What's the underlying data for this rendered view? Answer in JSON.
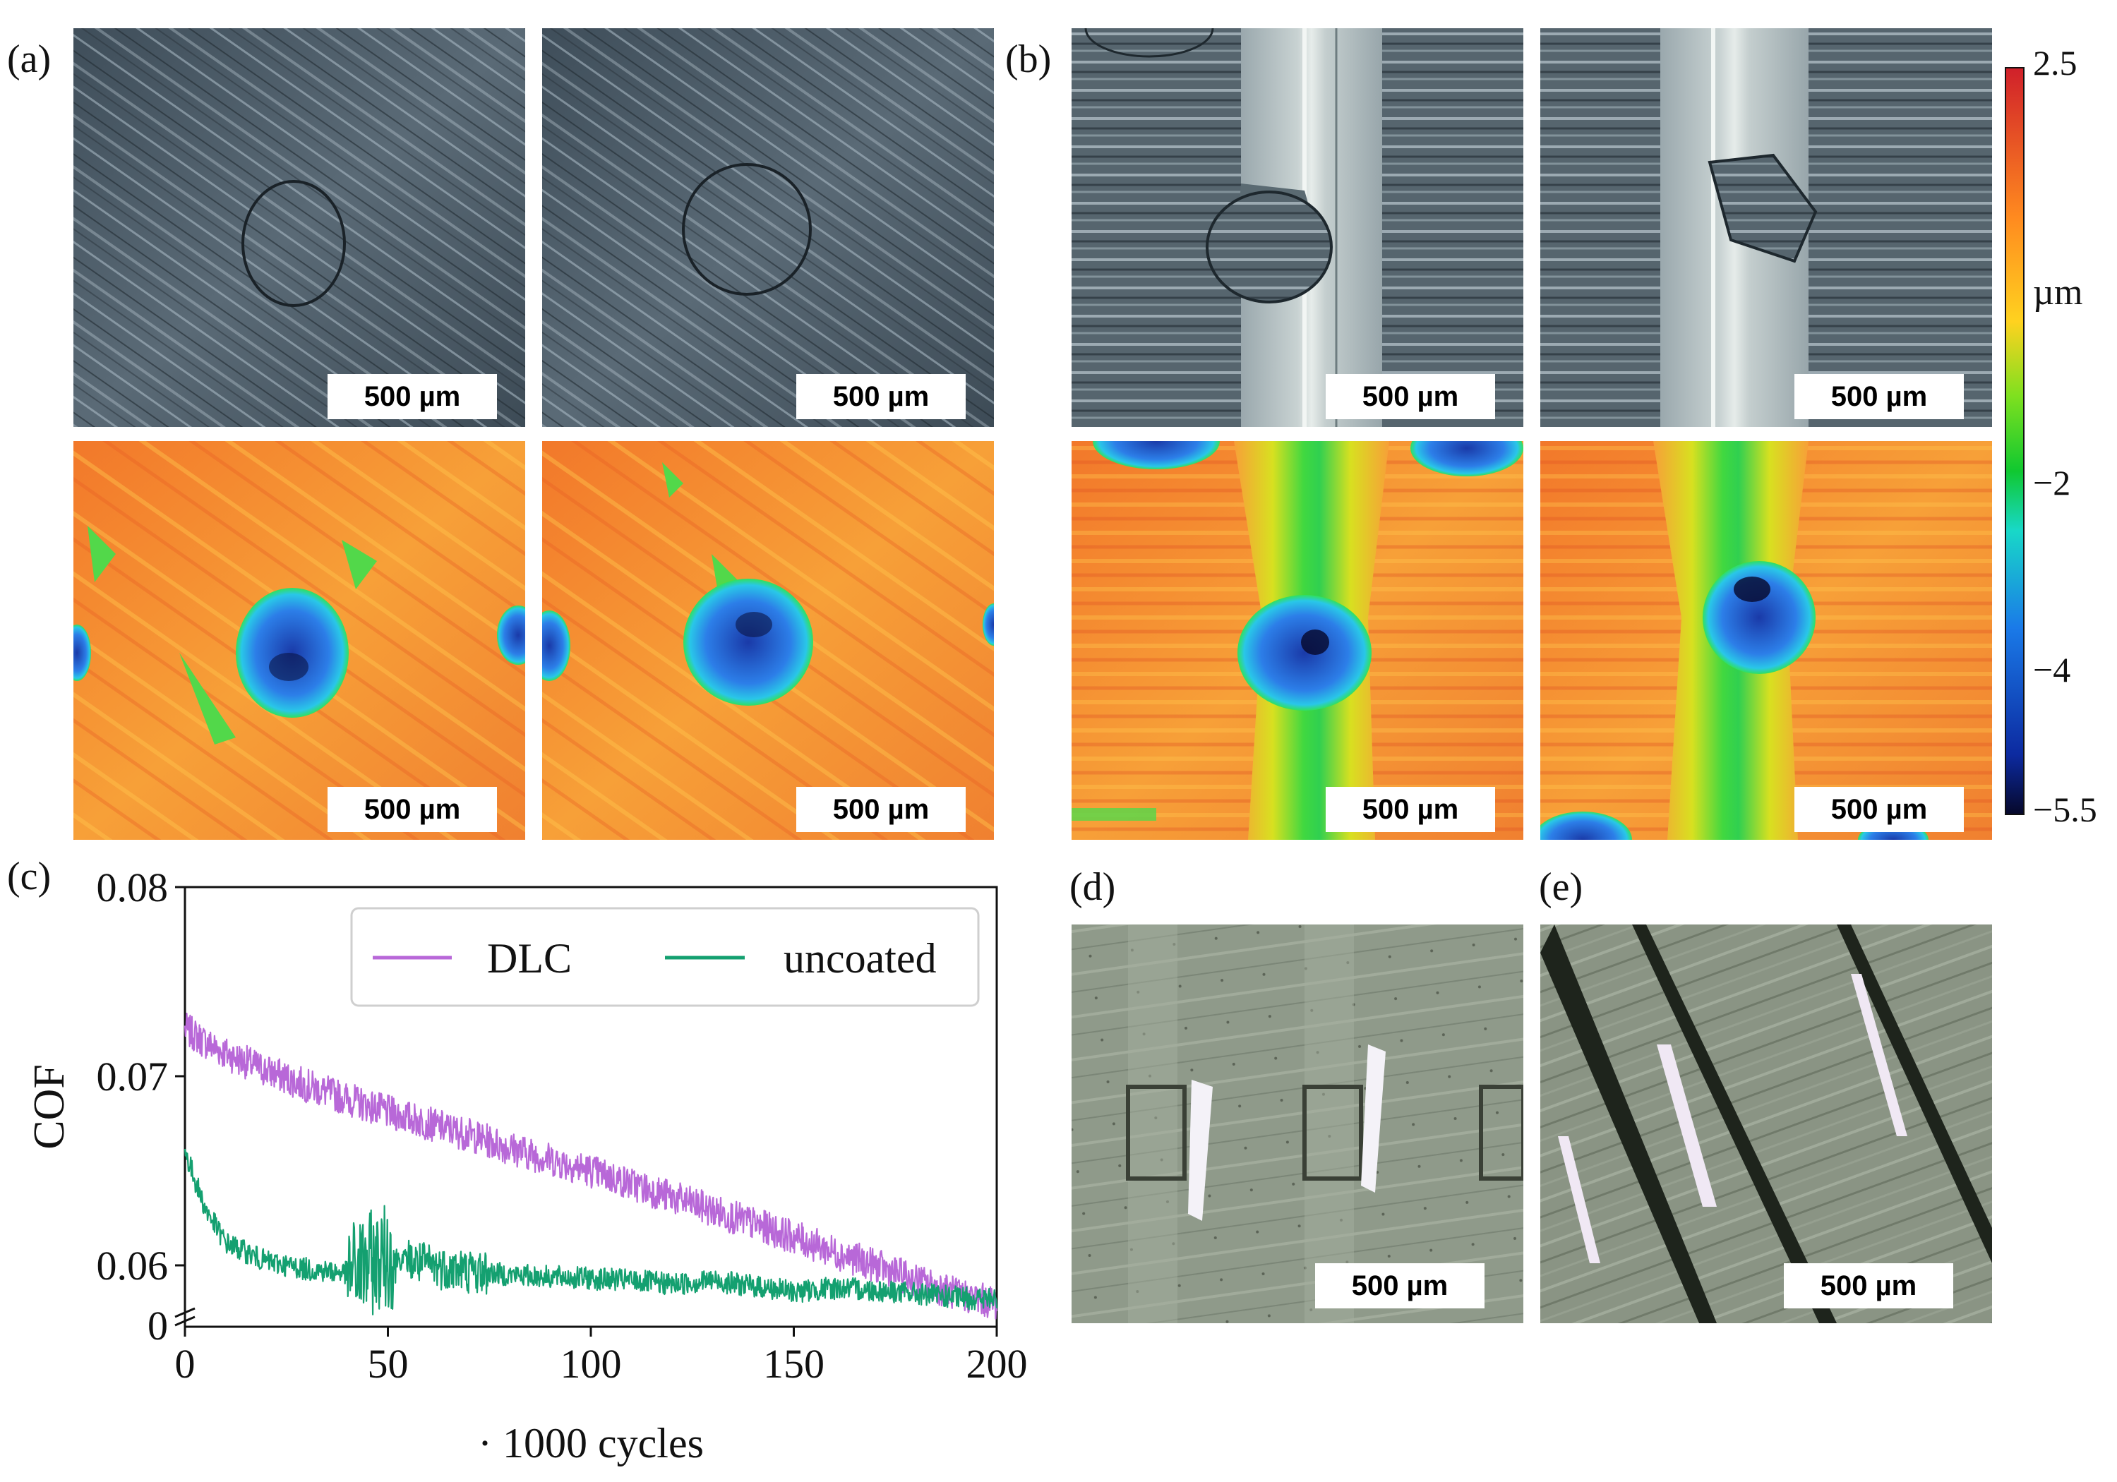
{
  "panel_labels": {
    "a": "(a)",
    "b": "(b)",
    "c": "(c)",
    "d": "(d)",
    "e": "(e)"
  },
  "scale_bar_text": "500 µm",
  "colorbar": {
    "unit": "µm",
    "ticks": [
      "2.5",
      "−2",
      "−4",
      "−5.5"
    ],
    "colors": [
      "#d0202a",
      "#ff8a1f",
      "#ffd21f",
      "#7ee01f",
      "#10c830",
      "#18d8c8",
      "#1a7ae8",
      "#0c2aa0",
      "#06082a"
    ]
  },
  "colors": {
    "optical_dark": "#4a5a66",
    "optical_light": "#a9b8c2",
    "height_surface": "#f48a2a",
    "height_pit": "#1f7ae8",
    "pale_optical": "#8c9686"
  },
  "chart_data": {
    "type": "line",
    "title": "",
    "xlabel": "· 1000 cycles",
    "ylabel": "COF",
    "xlim": [
      0,
      200
    ],
    "ylim": [
      0.055,
      0.08
    ],
    "broken_axis_origin_label": "0",
    "x_ticks": [
      "0",
      "50",
      "100",
      "150",
      "200"
    ],
    "y_ticks": [
      "0.06",
      "0.07",
      "0.08"
    ],
    "y_tick_values": [
      0.06,
      0.07,
      0.08
    ],
    "x_tick_values": [
      0,
      50,
      100,
      150,
      200
    ],
    "legend_position": "top-right",
    "x": [
      0,
      5,
      10,
      20,
      30,
      40,
      50,
      60,
      70,
      80,
      90,
      100,
      110,
      120,
      130,
      140,
      150,
      160,
      170,
      180,
      190,
      200
    ],
    "series": [
      {
        "name": "DLC",
        "color": "#b868d8",
        "values": [
          0.0725,
          0.0718,
          0.0712,
          0.0703,
          0.0695,
          0.0688,
          0.0681,
          0.0675,
          0.0669,
          0.0662,
          0.0656,
          0.065,
          0.0643,
          0.0636,
          0.0629,
          0.0622,
          0.0615,
          0.0607,
          0.06,
          0.0592,
          0.0585,
          0.058
        ]
      },
      {
        "name": "uncoated",
        "color": "#14a070",
        "values": [
          0.066,
          0.063,
          0.0612,
          0.0602,
          0.0598,
          0.0596,
          0.0605,
          0.06,
          0.0597,
          0.0595,
          0.0594,
          0.0593,
          0.0592,
          0.059,
          0.0592,
          0.0589,
          0.0586,
          0.0588,
          0.0587,
          0.0585,
          0.0583,
          0.0582
        ]
      }
    ]
  }
}
